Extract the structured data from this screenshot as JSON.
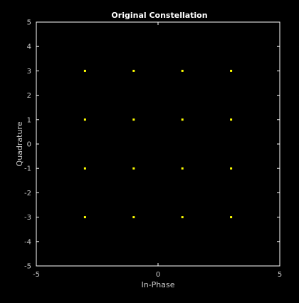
{
  "chart_data": {
    "type": "scatter",
    "title": "Original Constellation",
    "xlabel": "In-Phase",
    "ylabel": "Quadrature",
    "xlim": [
      -5,
      5
    ],
    "ylim": [
      -5,
      5
    ],
    "x_ticks": [
      -5,
      0,
      5
    ],
    "y_ticks": [
      -5,
      -4,
      -3,
      -2,
      -1,
      0,
      1,
      2,
      3,
      4,
      5
    ],
    "grid": false,
    "series": [
      {
        "marker": "square",
        "points": [
          [
            -3,
            3
          ],
          [
            -1,
            3
          ],
          [
            1,
            3
          ],
          [
            3,
            3
          ],
          [
            -3,
            1
          ],
          [
            -1,
            1
          ],
          [
            1,
            1
          ],
          [
            3,
            1
          ],
          [
            -3,
            -1
          ],
          [
            -1,
            -1
          ],
          [
            1,
            -1
          ],
          [
            3,
            -1
          ],
          [
            -3,
            -3
          ],
          [
            -1,
            -3
          ],
          [
            1,
            -3
          ],
          [
            3,
            -3
          ]
        ]
      }
    ]
  },
  "colors": {
    "background": "#000000",
    "axes": "#ffffff",
    "tick_labels": "#cccccc",
    "title": "#ffffff",
    "points": "#ffff00"
  }
}
